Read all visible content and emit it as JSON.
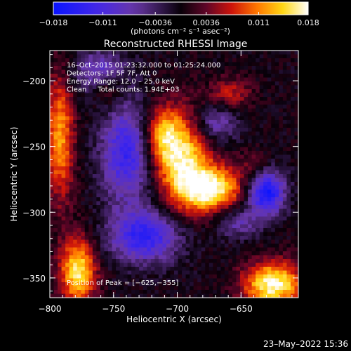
{
  "chart_data": {
    "type": "heatmap",
    "title": "Reconstructed RHESSI Image",
    "xlabel": "Heliocentric X (arcsec)",
    "ylabel": "Heliocentric Y (arcsec)",
    "xlim": [
      -800,
      -605
    ],
    "ylim": [
      -365,
      -177
    ],
    "x_ticks": [
      -800,
      -750,
      -700,
      -650
    ],
    "x_tick_labels": [
      "−800",
      "−750",
      "−700",
      "−650"
    ],
    "y_ticks": [
      -200,
      -250,
      -300,
      -350
    ],
    "y_tick_labels": [
      "−200",
      "−250",
      "−300",
      "−350"
    ],
    "colorbar": {
      "range": [
        -0.018,
        0.018
      ],
      "ticks": [
        -0.018,
        -0.011,
        -0.0036,
        0.0036,
        0.011,
        0.018
      ],
      "tick_labels": [
        "−0.018",
        "−0.011",
        "−0.0036",
        "0.0036",
        "0.011",
        "0.018"
      ],
      "unit_label": "(photons cm⁻² s⁻¹ asec⁻²)"
    },
    "annotations": [
      "16–Oct–2015 01:23:32.000 to 01:25:24.000",
      "Detectors: 1F 5F 7F, Att 0",
      "Energy Range: 12.0 – 25.0 keV",
      "Clean     Total counts: 1.94E+03"
    ],
    "peak_label": "Position of Peak = [−625,−355]",
    "sources": [
      {
        "x": -695,
        "y": -262,
        "value": 0.0155,
        "sx": 14,
        "sy": 26
      },
      {
        "x": -672,
        "y": -282,
        "value": 0.0165,
        "sx": 16,
        "sy": 12
      },
      {
        "x": -712,
        "y": -242,
        "value": 0.011,
        "sx": 10,
        "sy": 16
      },
      {
        "x": -625,
        "y": -355,
        "value": 0.018,
        "sx": 16,
        "sy": 12
      },
      {
        "x": -778,
        "y": -345,
        "value": 0.016,
        "sx": 10,
        "sy": 18
      },
      {
        "x": -792,
        "y": -243,
        "value": 0.012,
        "sx": 8,
        "sy": 34
      },
      {
        "x": -755,
        "y": -205,
        "value": 0.0085,
        "sx": 10,
        "sy": 10
      },
      {
        "x": -658,
        "y": -210,
        "value": 0.0065,
        "sx": 12,
        "sy": 9
      },
      {
        "x": -640,
        "y": -265,
        "value": 0.004,
        "sx": 10,
        "sy": 8
      },
      {
        "x": -740,
        "y": -255,
        "value": -0.013,
        "sx": 14,
        "sy": 26
      },
      {
        "x": -760,
        "y": -195,
        "value": -0.011,
        "sx": 14,
        "sy": 12
      },
      {
        "x": -725,
        "y": -318,
        "value": -0.014,
        "sx": 20,
        "sy": 14
      },
      {
        "x": -630,
        "y": -285,
        "value": -0.017,
        "sx": 10,
        "sy": 12
      },
      {
        "x": -670,
        "y": -232,
        "value": -0.008,
        "sx": 12,
        "sy": 10
      },
      {
        "x": -652,
        "y": -308,
        "value": -0.007,
        "sx": 12,
        "sy": 8
      }
    ],
    "grid": false
  },
  "footer": {
    "timestamp": "23–May–2022 15:36"
  }
}
